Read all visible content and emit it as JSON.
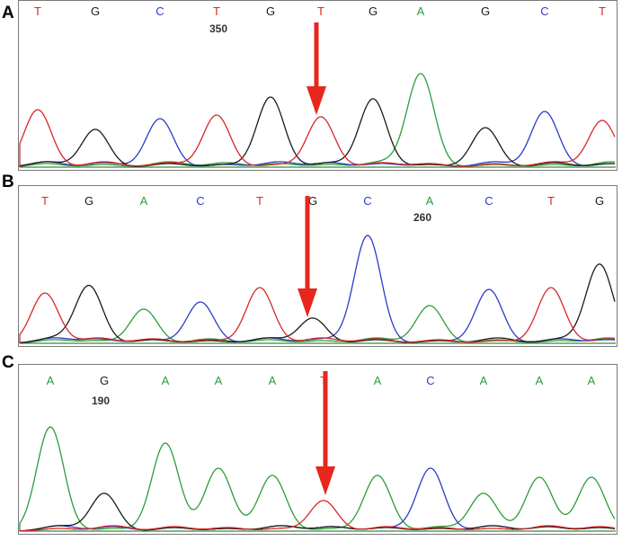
{
  "colors": {
    "A": "#2a9d3a",
    "C": "#2b3bc9",
    "G": "#1a1a1a",
    "T": "#d62828",
    "arrow": "#e8261c"
  },
  "panels": [
    {
      "label": "A",
      "bases": [
        "T",
        "G",
        "C",
        "T",
        "G",
        "T",
        "G",
        "A",
        "G",
        "C",
        "T"
      ],
      "position_label": "350"
    },
    {
      "label": "B",
      "bases": [
        "T",
        "G",
        "A",
        "C",
        "T",
        "G",
        "C",
        "A",
        "C",
        "T",
        "G"
      ],
      "position_label": "260"
    },
    {
      "label": "C",
      "bases": [
        "A",
        "G",
        "A",
        "A",
        "A",
        "T",
        "A",
        "C",
        "A",
        "A",
        "A"
      ],
      "position_label": "190"
    }
  ]
}
